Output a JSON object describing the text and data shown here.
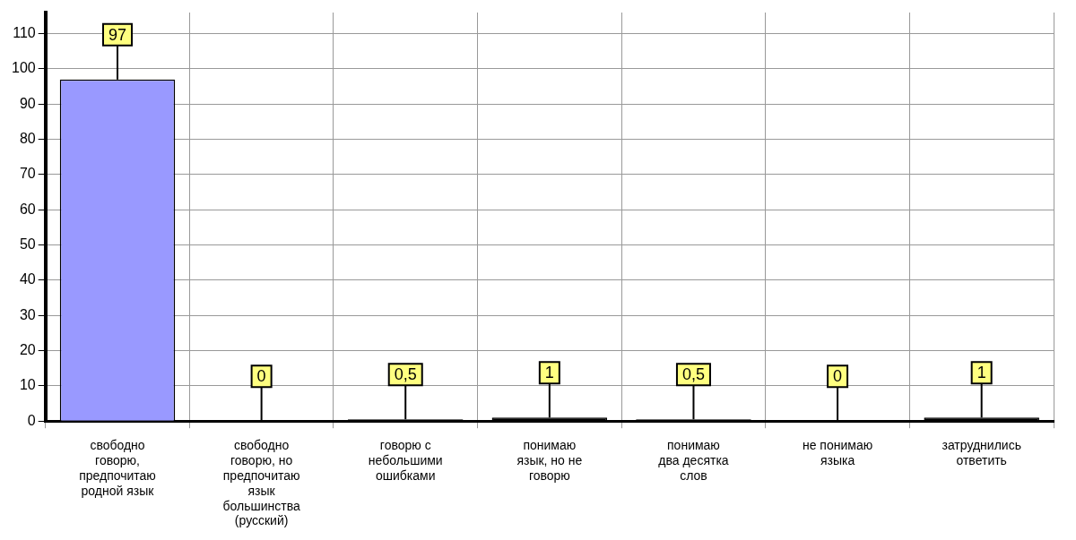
{
  "chart_data": {
    "type": "bar",
    "categories": [
      "свободно говорю, предпочитаю родной язык",
      "свободно говорю, но предпочитаю язык большинства (русский)",
      "говорю с небольшими ошибками",
      "понимаю язык, но не говорю",
      "понимаю два десятка слов",
      "не понимаю языка",
      "затруднились ответить"
    ],
    "values": [
      97,
      0,
      0.5,
      1,
      0.5,
      0,
      1
    ],
    "colors": [
      "#9999ff",
      "#993366",
      "#000000",
      "#000000",
      "#000000",
      "#ff8080",
      "#000000"
    ],
    "value_labels": [
      "97",
      "0",
      "0,5",
      "1",
      "0,5",
      "0",
      "1"
    ],
    "ylim": [
      0,
      116
    ],
    "yticks": [
      0,
      10,
      20,
      30,
      40,
      50,
      60,
      70,
      80,
      90,
      100,
      110
    ],
    "grid": true,
    "legend": false
  }
}
